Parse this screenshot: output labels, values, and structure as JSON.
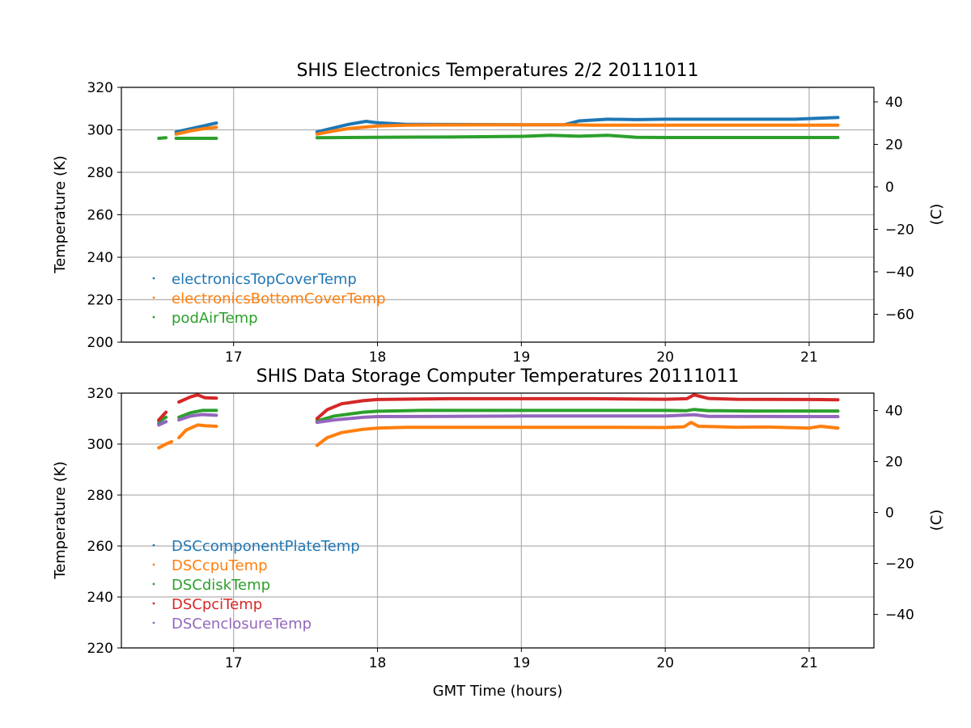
{
  "chart_data": [
    {
      "type": "scatter",
      "title": "SHIS Electronics Temperatures 2/2 20111011",
      "xlabel": "",
      "ylabel": "Temperature (K)",
      "y2label": "(C)",
      "xlim": [
        16.22,
        21.45
      ],
      "ylim": [
        200,
        320
      ],
      "xticks": [
        "17",
        "18",
        "19",
        "20",
        "21"
      ],
      "yticks": [
        "200",
        "220",
        "240",
        "260",
        "280",
        "300",
        "320"
      ],
      "y2ticks": [
        "−60",
        "−40",
        "−20",
        "0",
        "20",
        "40"
      ],
      "grid": true,
      "legend_position": "lower-left",
      "series": [
        {
          "name": "electronicsTopCoverTemp",
          "color": "#1f77b4",
          "segments": [
            [
              [
                16.6,
                299.0
              ],
              [
                16.7,
                300.5
              ],
              [
                16.8,
                302.0
              ],
              [
                16.88,
                303.2
              ]
            ],
            [
              [
                17.58,
                299.0
              ],
              [
                17.7,
                301.0
              ],
              [
                17.8,
                302.6
              ],
              [
                17.92,
                304.0
              ],
              [
                18.0,
                303.3
              ],
              [
                18.2,
                302.6
              ],
              [
                19.0,
                302.4
              ],
              [
                19.3,
                302.4
              ],
              [
                19.4,
                304.2
              ],
              [
                19.6,
                305.0
              ],
              [
                19.8,
                304.8
              ],
              [
                20.0,
                305.0
              ],
              [
                20.5,
                305.0
              ],
              [
                20.9,
                305.0
              ],
              [
                21.0,
                305.3
              ],
              [
                21.2,
                305.8
              ]
            ]
          ]
        },
        {
          "name": "electronicsBottomCoverTemp",
          "color": "#ff7f0e",
          "segments": [
            [
              [
                16.6,
                298.0
              ],
              [
                16.7,
                299.5
              ],
              [
                16.8,
                300.6
              ],
              [
                16.88,
                301.2
              ]
            ],
            [
              [
                17.58,
                298.0
              ],
              [
                17.7,
                299.5
              ],
              [
                17.8,
                300.6
              ],
              [
                18.0,
                301.8
              ],
              [
                18.2,
                302.2
              ],
              [
                19.0,
                302.4
              ],
              [
                19.3,
                302.4
              ],
              [
                19.5,
                302.2
              ],
              [
                20.0,
                302.2
              ],
              [
                21.2,
                302.2
              ]
            ]
          ]
        },
        {
          "name": "podAirTemp",
          "color": "#2ca02c",
          "segments": [
            [
              [
                16.48,
                296.0
              ],
              [
                16.53,
                296.3
              ]
            ],
            [
              [
                16.6,
                296.0
              ],
              [
                16.7,
                296.0
              ],
              [
                16.88,
                296.0
              ]
            ],
            [
              [
                17.58,
                296.3
              ],
              [
                18.0,
                296.5
              ],
              [
                18.5,
                296.6
              ],
              [
                19.0,
                296.9
              ],
              [
                19.2,
                297.4
              ],
              [
                19.4,
                297.0
              ],
              [
                19.6,
                297.4
              ],
              [
                19.8,
                296.5
              ],
              [
                20.0,
                296.4
              ],
              [
                20.5,
                296.4
              ],
              [
                21.2,
                296.4
              ]
            ]
          ]
        }
      ]
    },
    {
      "type": "scatter",
      "title": "SHIS Data Storage Computer Temperatures 20111011",
      "xlabel": "GMT Time (hours)",
      "ylabel": "Temperature (K)",
      "y2label": "(C)",
      "xlim": [
        16.22,
        21.45
      ],
      "ylim": [
        220,
        320
      ],
      "xticks": [
        "17",
        "18",
        "19",
        "20",
        "21"
      ],
      "yticks": [
        "220",
        "240",
        "260",
        "280",
        "300",
        "320"
      ],
      "y2ticks": [
        "−40",
        "−20",
        "0",
        "20",
        "40"
      ],
      "grid": true,
      "legend_position": "lower-left",
      "series": [
        {
          "name": "DSCcomponentPlateTemp",
          "color": "#1f77b4",
          "segments": [
            [
              [
                16.48,
                308.0
              ],
              [
                16.53,
                308.8
              ]
            ]
          ]
        },
        {
          "name": "DSCcpuTemp",
          "color": "#ff7f0e",
          "segments": [
            [
              [
                16.48,
                298.5
              ],
              [
                16.53,
                300.0
              ],
              [
                16.57,
                301.0
              ]
            ],
            [
              [
                16.62,
                302.5
              ],
              [
                16.67,
                305.5
              ],
              [
                16.75,
                307.5
              ],
              [
                16.8,
                307.2
              ],
              [
                16.88,
                307.0
              ]
            ],
            [
              [
                17.58,
                299.5
              ],
              [
                17.65,
                302.5
              ],
              [
                17.75,
                304.5
              ],
              [
                17.9,
                305.8
              ],
              [
                18.0,
                306.3
              ],
              [
                18.2,
                306.6
              ],
              [
                19.0,
                306.6
              ],
              [
                19.5,
                306.6
              ],
              [
                20.0,
                306.5
              ],
              [
                20.13,
                306.8
              ],
              [
                20.18,
                308.5
              ],
              [
                20.23,
                307.0
              ],
              [
                20.5,
                306.6
              ],
              [
                20.7,
                306.7
              ],
              [
                21.0,
                306.3
              ],
              [
                21.08,
                307.0
              ],
              [
                21.2,
                306.3
              ]
            ]
          ]
        },
        {
          "name": "DSCdiskTemp",
          "color": "#2ca02c",
          "segments": [
            [
              [
                16.48,
                309.0
              ],
              [
                16.53,
                310.5
              ]
            ],
            [
              [
                16.62,
                310.5
              ],
              [
                16.7,
                312.3
              ],
              [
                16.78,
                313.2
              ],
              [
                16.88,
                313.2
              ]
            ],
            [
              [
                17.58,
                309.0
              ],
              [
                17.7,
                311.0
              ],
              [
                17.9,
                312.5
              ],
              [
                18.0,
                312.9
              ],
              [
                18.3,
                313.2
              ],
              [
                19.0,
                313.2
              ],
              [
                20.0,
                313.2
              ],
              [
                20.15,
                313.1
              ],
              [
                20.2,
                313.6
              ],
              [
                20.3,
                313.1
              ],
              [
                20.6,
                313.0
              ],
              [
                21.2,
                313.0
              ]
            ]
          ]
        },
        {
          "name": "DSCpciTemp",
          "color": "#d62728",
          "segments": [
            [
              [
                16.48,
                309.5
              ],
              [
                16.53,
                312.5
              ]
            ],
            [
              [
                16.62,
                316.5
              ],
              [
                16.7,
                318.5
              ],
              [
                16.75,
                319.3
              ],
              [
                16.8,
                318.2
              ],
              [
                16.88,
                318.0
              ]
            ],
            [
              [
                17.58,
                310.0
              ],
              [
                17.65,
                313.5
              ],
              [
                17.75,
                315.8
              ],
              [
                17.9,
                317.0
              ],
              [
                18.0,
                317.5
              ],
              [
                18.5,
                317.8
              ],
              [
                19.0,
                317.8
              ],
              [
                19.5,
                317.8
              ],
              [
                20.0,
                317.6
              ],
              [
                20.15,
                317.8
              ],
              [
                20.2,
                319.3
              ],
              [
                20.3,
                317.9
              ],
              [
                20.5,
                317.6
              ],
              [
                21.0,
                317.5
              ],
              [
                21.2,
                317.4
              ]
            ]
          ]
        },
        {
          "name": "DSCenclosureTemp",
          "color": "#9467bd",
          "segments": [
            [
              [
                16.48,
                307.5
              ],
              [
                16.53,
                308.8
              ]
            ],
            [
              [
                16.62,
                309.5
              ],
              [
                16.7,
                311.0
              ],
              [
                16.78,
                311.6
              ],
              [
                16.88,
                311.3
              ]
            ],
            [
              [
                17.58,
                308.5
              ],
              [
                17.7,
                309.5
              ],
              [
                17.9,
                310.5
              ],
              [
                18.0,
                310.8
              ],
              [
                18.5,
                310.9
              ],
              [
                19.0,
                311.0
              ],
              [
                20.0,
                311.0
              ],
              [
                20.2,
                311.5
              ],
              [
                20.3,
                310.9
              ],
              [
                21.2,
                310.8
              ]
            ]
          ]
        }
      ]
    }
  ]
}
